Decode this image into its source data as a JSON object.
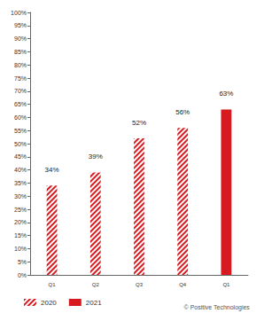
{
  "chart_data": {
    "type": "bar",
    "categories": [
      "Q1",
      "Q2",
      "Q3",
      "Q4",
      "Q1"
    ],
    "series": [
      {
        "name": "2020",
        "color": "#d71920",
        "line_style": "hatched",
        "values": [
          34,
          39,
          52,
          56,
          null
        ],
        "value_labels": [
          "34%",
          "39%",
          "52%",
          "56%",
          null
        ]
      },
      {
        "name": "2021",
        "color": "#d71920",
        "line_style": "solid",
        "values": [
          null,
          null,
          null,
          null,
          63
        ],
        "value_labels": [
          null,
          null,
          null,
          null,
          "63%"
        ]
      }
    ],
    "ylim": [
      0,
      100
    ],
    "yticks": [
      {
        "value": 0,
        "label": "0%"
      },
      {
        "value": 5,
        "label": "5%"
      },
      {
        "value": 10,
        "label": "10%"
      },
      {
        "value": 15,
        "label": "15%"
      },
      {
        "value": 20,
        "label": "20%"
      },
      {
        "value": 25,
        "label": "25%"
      },
      {
        "value": 30,
        "label": "30%"
      },
      {
        "value": 35,
        "label": "35%"
      },
      {
        "value": 40,
        "label": "40%"
      },
      {
        "value": 45,
        "label": "45%"
      },
      {
        "value": 50,
        "label": "50%"
      },
      {
        "value": 55,
        "label": "55%"
      },
      {
        "value": 60,
        "label": "60%"
      },
      {
        "value": 65,
        "label": "65%"
      },
      {
        "value": 70,
        "label": "70%"
      },
      {
        "value": 75,
        "label": "75%"
      },
      {
        "value": 80,
        "label": "80%"
      },
      {
        "value": 85,
        "label": "85%"
      },
      {
        "value": 90,
        "label": "90%"
      },
      {
        "value": 95,
        "label": "95%"
      },
      {
        "value": 100,
        "label": "100%"
      }
    ],
    "grid": false,
    "data_labels": true,
    "legend": "bottom",
    "annotation": "© Positive Technologies"
  }
}
